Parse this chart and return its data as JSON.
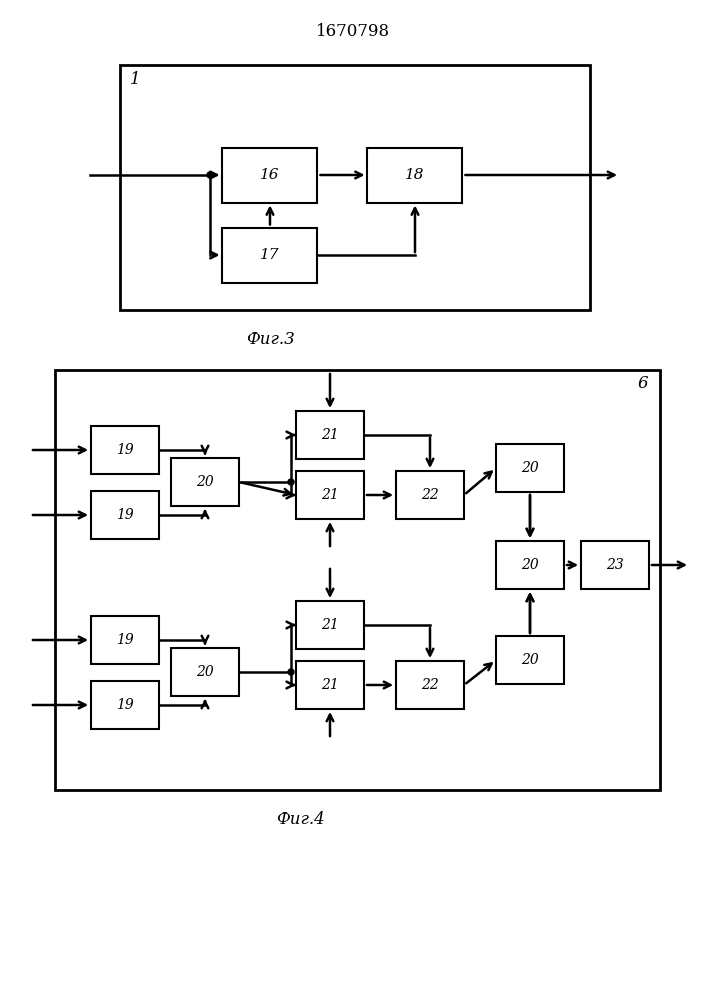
{
  "title": "1670798",
  "fig3_caption": "Фиг.3",
  "fig4_caption": "Фиг.4",
  "bg_color": "#ffffff",
  "line_color": "#000000"
}
